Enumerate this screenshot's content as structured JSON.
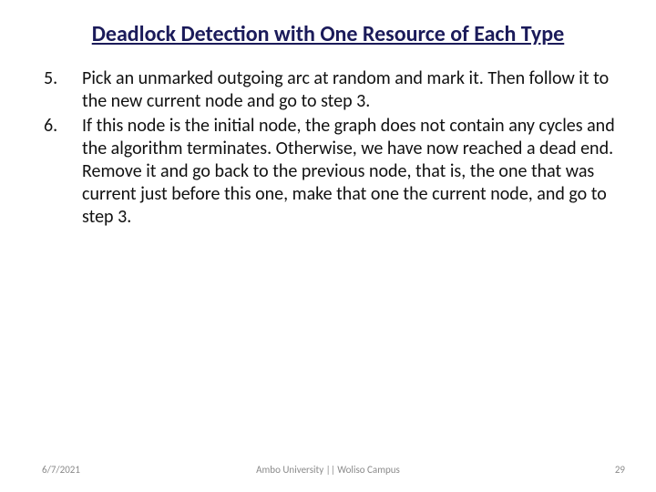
{
  "slide": {
    "title": "Deadlock Detection with One Resource of Each Type",
    "title_color": "#1b1b5a",
    "title_fontsize": 24,
    "body_fontsize": 20,
    "body_color": "#111111",
    "background_color": "#ffffff",
    "list_start": 5,
    "items": [
      "Pick an unmarked outgoing arc at random and mark it. Then follow it to the new current node and go to step 3.",
      "If this node is the initial node, the graph does not contain any cycles and the algorithm terminates. Otherwise, we have now reached a dead end. Remove it and go back to the previous node, that is, the one that was current just before this one, make that one the current node, and go to step 3."
    ]
  },
  "footer": {
    "date": "6/7/2021",
    "center": "Ambo University || Woliso Campus",
    "page": "29",
    "color": "#8a8a8a",
    "fontsize": 11
  }
}
